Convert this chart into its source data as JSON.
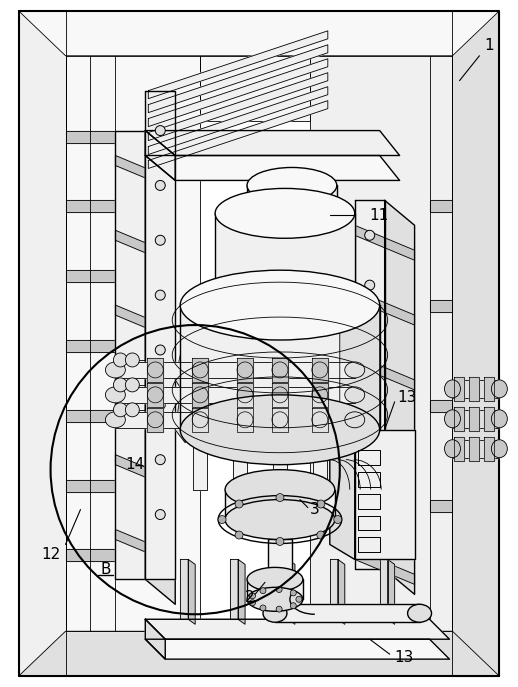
{
  "bg_color": "#ffffff",
  "line_color": "#000000",
  "lw_main": 1.0,
  "lw_thin": 0.6,
  "label_fontsize": 11,
  "fills": {
    "light": "#f0f0f0",
    "mid": "#e0e0e0",
    "dark": "#c8c8c8",
    "darker": "#b0b0b0",
    "white": "#ffffff",
    "very_light": "#f8f8f8"
  }
}
